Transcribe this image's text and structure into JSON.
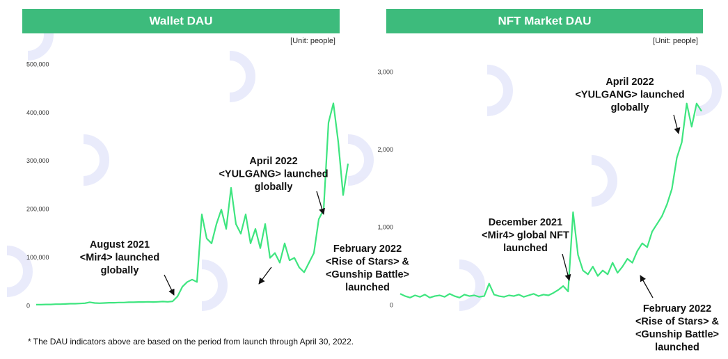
{
  "chart_data": [
    {
      "type": "line",
      "title": "Wallet DAU",
      "unit": "[Unit: people]",
      "color": "#3ee57f",
      "ylim": [
        0,
        500000
      ],
      "yticks": [
        0,
        {
          "value": 100000,
          "label": "100,000"
        },
        {
          "value": 200000,
          "label": "200,000"
        },
        {
          "value": 300000,
          "label": "300,000"
        },
        {
          "value": 400000,
          "label": "400,000"
        },
        {
          "value": 500000,
          "label": "500,000"
        }
      ],
      "values": [
        3000,
        3000,
        3500,
        3500,
        4000,
        4000,
        4500,
        5000,
        5000,
        5500,
        6000,
        8000,
        6500,
        6000,
        6500,
        7000,
        7000,
        7500,
        7500,
        8000,
        8000,
        8500,
        8500,
        9000,
        8500,
        9000,
        9500,
        9000,
        10000,
        20000,
        40000,
        50000,
        55000,
        50000,
        190000,
        140000,
        130000,
        170000,
        200000,
        160000,
        245000,
        170000,
        150000,
        190000,
        130000,
        160000,
        120000,
        170000,
        100000,
        110000,
        90000,
        130000,
        95000,
        100000,
        80000,
        70000,
        90000,
        110000,
        180000,
        200000,
        380000,
        420000,
        340000,
        230000,
        295000
      ],
      "annotations": [
        {
          "lines": [
            "August 2021",
            "<Mir4> launched",
            "globally"
          ]
        },
        {
          "lines": [
            "April 2022",
            "<YULGANG> launched",
            "globally"
          ]
        },
        {
          "lines": [
            "February 2022",
            "<Rise of Stars> &",
            "<Gunship Battle>",
            "launched"
          ]
        }
      ]
    },
    {
      "type": "line",
      "title": "NFT Market DAU",
      "unit": "[Unit: people]",
      "color": "#3ee57f",
      "ylim": [
        0,
        3000
      ],
      "yticks": [
        0,
        {
          "value": 1000,
          "label": "1,000"
        },
        {
          "value": 2000,
          "label": "2,000"
        },
        {
          "value": 3000,
          "label": "3,000"
        }
      ],
      "values": [
        150,
        120,
        100,
        130,
        110,
        140,
        100,
        120,
        130,
        110,
        150,
        120,
        100,
        140,
        120,
        130,
        110,
        120,
        280,
        140,
        120,
        110,
        130,
        120,
        140,
        110,
        130,
        150,
        120,
        140,
        130,
        160,
        200,
        250,
        180,
        1200,
        650,
        450,
        400,
        500,
        380,
        450,
        400,
        550,
        420,
        500,
        600,
        550,
        700,
        800,
        750,
        950,
        1050,
        1150,
        1300,
        1500,
        1900,
        2100,
        2600,
        2300,
        2600,
        2500
      ],
      "annotations": [
        {
          "lines": [
            "December 2021",
            "<Mir4> global NFT",
            "launched"
          ]
        },
        {
          "lines": [
            "April 2022",
            "<YULGANG> launched",
            "globally"
          ]
        },
        {
          "lines": [
            "February 2022",
            "<Rise of Stars> &",
            "<Gunship Battle>",
            "launched"
          ]
        }
      ]
    }
  ],
  "footnote": "* The DAU indicators above are based on the period from launch through April 30, 2022."
}
